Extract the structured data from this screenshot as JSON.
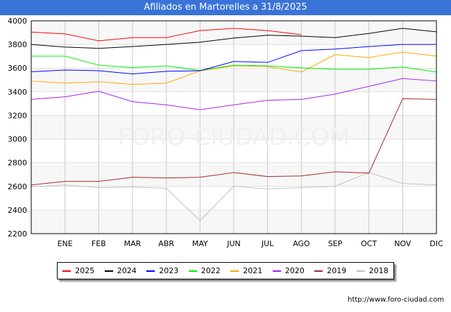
{
  "title": "Afiliados en Martorelles a 31/8/2025",
  "url": "http://www.foro-ciudad.com",
  "watermark": "FORO-CIUDAD.COM",
  "chart_data": {
    "type": "line",
    "title": "Afiliados en Martorelles a 31/8/2025",
    "categories": [
      "",
      "ENE",
      "FEB",
      "MAR",
      "ABR",
      "MAY",
      "JUN",
      "JUL",
      "AGO",
      "SEP",
      "OCT",
      "NOV",
      "DIC"
    ],
    "ylim": [
      2200,
      4000
    ],
    "yticks": [
      2200,
      2400,
      2600,
      2800,
      3000,
      3200,
      3400,
      3600,
      3800,
      4000
    ],
    "grid": true,
    "legend": "bottom",
    "series": [
      {
        "name": "2025",
        "color": "#ff0000",
        "values": [
          3905,
          3889,
          3831,
          3858,
          3858,
          3917,
          3936,
          3917,
          3883,
          null,
          null,
          null,
          null
        ]
      },
      {
        "name": "2024",
        "color": "#000000",
        "values": [
          3800,
          3778,
          3767,
          3782,
          3800,
          3819,
          3854,
          3878,
          3870,
          3858,
          3893,
          3936,
          3907
        ]
      },
      {
        "name": "2023",
        "color": "#0000ff",
        "values": [
          3569,
          3584,
          3578,
          3551,
          3573,
          3578,
          3656,
          3648,
          3748,
          3761,
          3782,
          3800,
          3800
        ]
      },
      {
        "name": "2022",
        "color": "#00ee00",
        "values": [
          3701,
          3701,
          3625,
          3604,
          3619,
          3580,
          3625,
          3619,
          3602,
          3590,
          3590,
          3609,
          3567
        ]
      },
      {
        "name": "2021",
        "color": "#ffa500",
        "values": [
          3491,
          3473,
          3485,
          3462,
          3473,
          3576,
          3619,
          3613,
          3567,
          3714,
          3689,
          3736,
          3701
        ]
      },
      {
        "name": "2020",
        "color": "#a020f0",
        "values": [
          3335,
          3357,
          3404,
          3316,
          3289,
          3248,
          3289,
          3328,
          3335,
          3380,
          3446,
          3512,
          3491
        ]
      },
      {
        "name": "2019",
        "color": "#a52a2a",
        "values": [
          2612,
          2642,
          2642,
          2677,
          2671,
          2677,
          2717,
          2683,
          2688,
          2723,
          2712,
          3341,
          3335
        ]
      },
      {
        "name": "2018",
        "color": "#c0c0c0",
        "values": [
          2595,
          2612,
          2589,
          2595,
          2583,
          2309,
          2601,
          2578,
          2589,
          2601,
          2717,
          2624,
          2612
        ]
      }
    ]
  }
}
